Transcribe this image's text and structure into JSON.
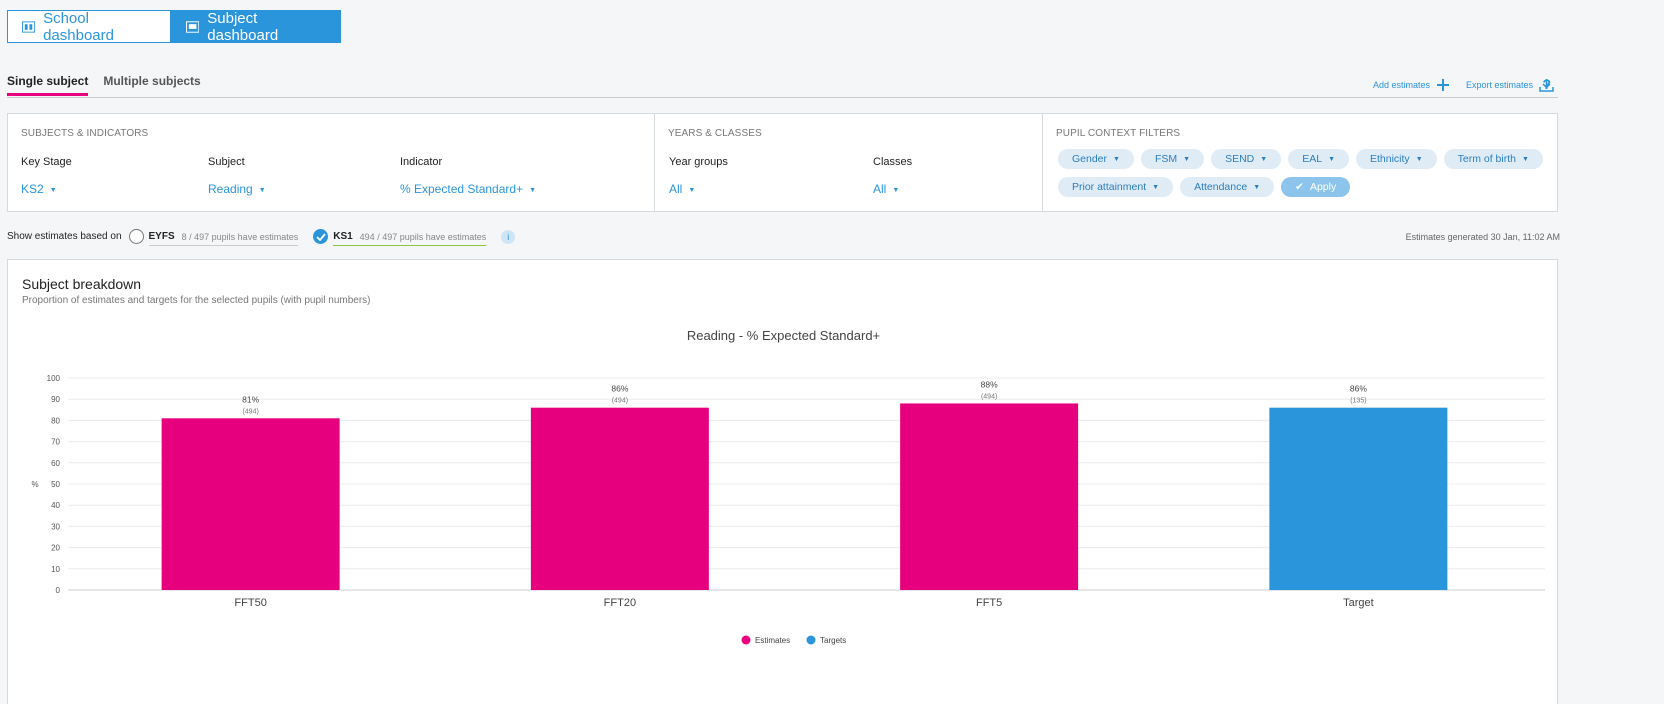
{
  "dashboard_buttons": {
    "school": "School dashboard",
    "subject": "Subject dashboard"
  },
  "tabs": {
    "single": "Single subject",
    "multiple": "Multiple subjects"
  },
  "actions": {
    "add": "Add estimates",
    "export": "Export estimates",
    "help": "?"
  },
  "filters": {
    "subjects_title": "SUBJECTS & INDICATORS",
    "key_stage_label": "Key Stage",
    "key_stage_value": "KS2",
    "subject_label": "Subject",
    "subject_value": "Reading",
    "indicator_label": "Indicator",
    "indicator_value": "% Expected Standard+",
    "years_title": "YEARS & CLASSES",
    "year_groups_label": "Year groups",
    "year_groups_value": "All",
    "classes_label": "Classes",
    "classes_value": "All",
    "context_title": "PUPIL CONTEXT FILTERS",
    "chips": [
      "Gender",
      "FSM",
      "SEND",
      "EAL",
      "Ethnicity",
      "Term of birth",
      "Prior attainment",
      "Attendance"
    ],
    "apply": "Apply"
  },
  "estimates": {
    "label": "Show estimates based on",
    "eyfs_name": "EYFS",
    "eyfs_sub": "8 / 497 pupils have estimates",
    "ks1_name": "KS1",
    "ks1_sub": "494 / 497 pupils have estimates",
    "info": "i",
    "generated": "Estimates generated 30 Jan, 11:02 AM"
  },
  "breakdown": {
    "title": "Subject breakdown",
    "subtitle": "Proportion of estimates and targets for the selected pupils (with pupil numbers)"
  },
  "colors": {
    "accent": "#2b95dc",
    "estimates": "#e6007e",
    "targets": "#2b95dc"
  },
  "chart_data": {
    "type": "bar",
    "title": "Reading - % Expected Standard+",
    "ylabel": "%",
    "ylim": [
      0,
      100
    ],
    "yticks": [
      0,
      10,
      20,
      30,
      40,
      50,
      60,
      70,
      80,
      90,
      100
    ],
    "categories": [
      "FFT50",
      "FFT20",
      "FFT5",
      "Target"
    ],
    "values": [
      81,
      86,
      88,
      86
    ],
    "value_labels": [
      "81%",
      "86%",
      "88%",
      "86%"
    ],
    "counts": [
      "(494)",
      "(494)",
      "(494)",
      "(135)"
    ],
    "series_of_bar": [
      "Estimates",
      "Estimates",
      "Estimates",
      "Targets"
    ],
    "legend": [
      {
        "name": "Estimates",
        "color": "#e6007e"
      },
      {
        "name": "Targets",
        "color": "#2b95dc"
      }
    ],
    "grid": true,
    "legend_position": "bottom"
  }
}
